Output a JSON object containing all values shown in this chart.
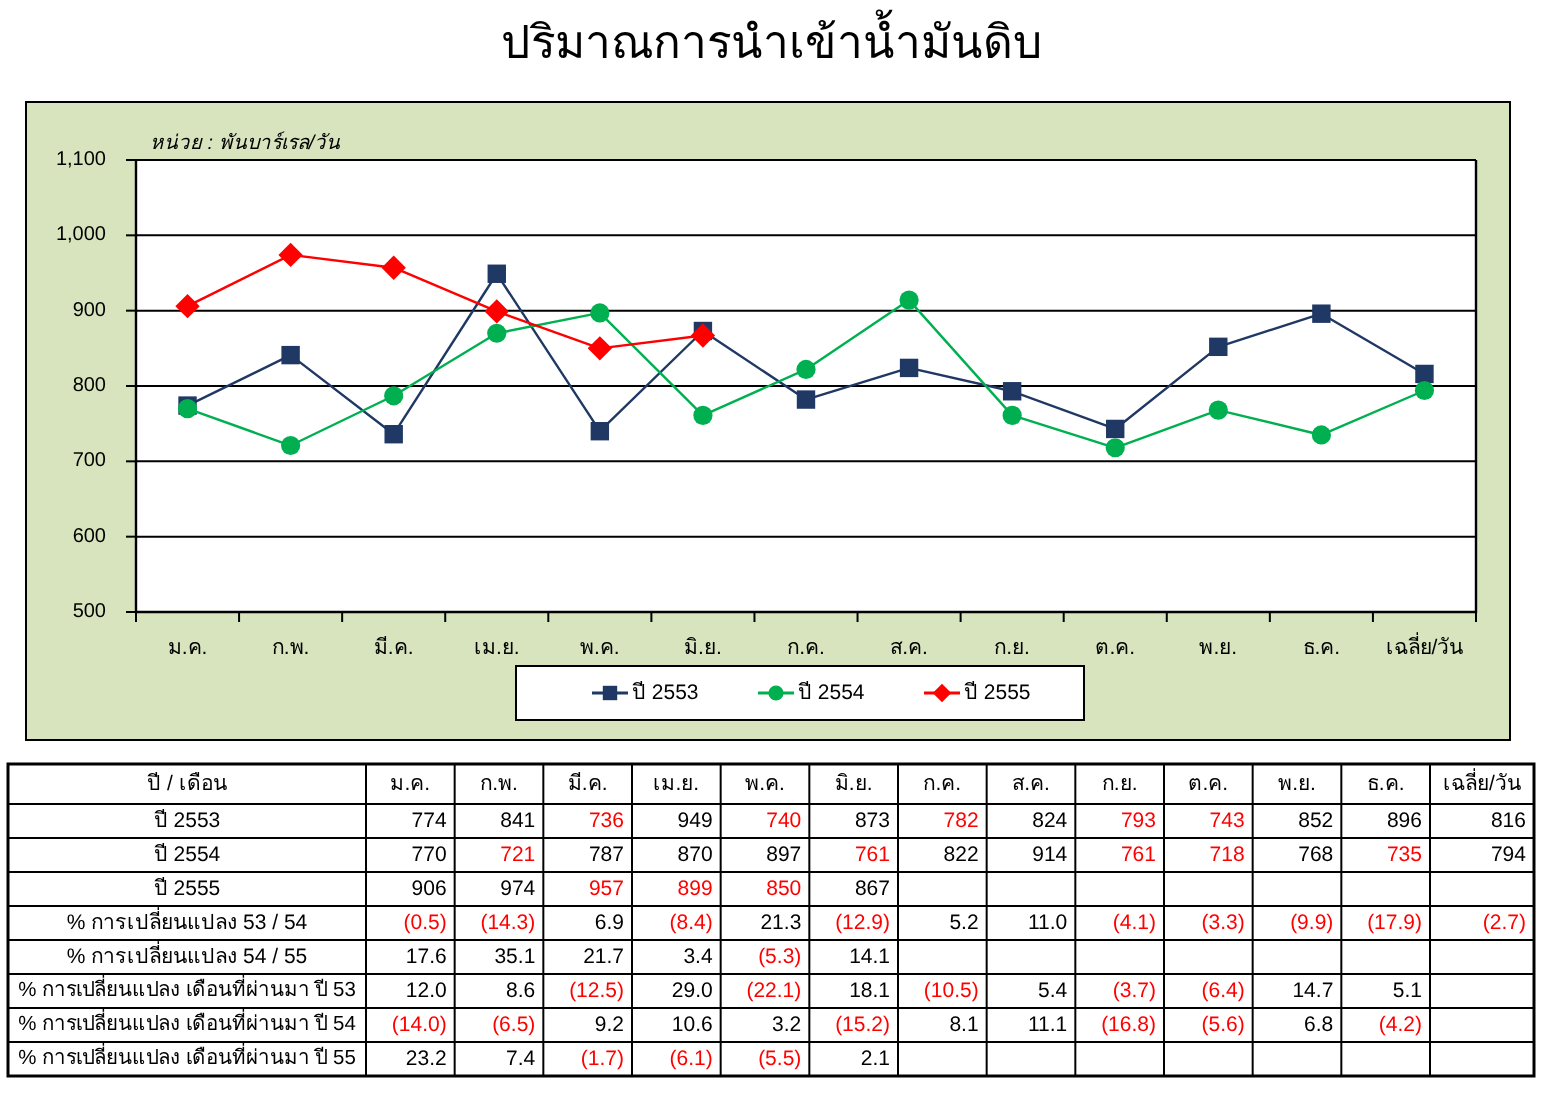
{
  "chart_data": [
    {
      "type": "line",
      "title": "ปริมาณการนำเข้าน้ำมันดิบ",
      "categories": [
        "ม.ค.",
        "ก.พ.",
        "มี.ค.",
        "เม.ย.",
        "พ.ค.",
        "มิ.ย.",
        "ก.ค.",
        "ส.ค.",
        "ก.ย.",
        "ต.ค.",
        "พ.ย.",
        "ธ.ค.",
        "เฉลี่ย/วัน"
      ],
      "series": [
        {
          "name": "ปี 2553",
          "color": "#1f3864",
          "marker": "square",
          "values": [
            774,
            841,
            736,
            949,
            740,
            873,
            782,
            824,
            793,
            743,
            852,
            896,
            816
          ]
        },
        {
          "name": "ปี 2554",
          "color": "#00b050",
          "marker": "circle",
          "values": [
            770,
            721,
            787,
            870,
            897,
            761,
            822,
            914,
            761,
            718,
            768,
            735,
            794
          ]
        },
        {
          "name": "ปี 2555",
          "color": "#ff0000",
          "marker": "diamond",
          "values": [
            906,
            974,
            957,
            899,
            850,
            867,
            null,
            null,
            null,
            null,
            null,
            null,
            null
          ]
        }
      ],
      "ylim": [
        500,
        1100
      ],
      "yticks": [
        500,
        600,
        700,
        800,
        900,
        {
          "value": 1000,
          "label": "1,000"
        },
        {
          "value": 1100,
          "label": "1,100"
        }
      ],
      "grid": "y",
      "legend": "bottom",
      "annotations": [
        "หน่วย : พันบาร์เรล/วัน"
      ]
    },
    {
      "type": "other",
      "categories": [
        "ม.ค.",
        "ก.พ.",
        "มี.ค.",
        "เม.ย.",
        "พ.ค.",
        "มิ.ย.",
        "ก.ค.",
        "ส.ค.",
        "ก.ย.",
        "ต.ค.",
        "พ.ย.",
        "ธ.ค.",
        "เฉลี่ย/วัน"
      ],
      "annotations": [
        "ปี / เดือน"
      ],
      "series": [
        {
          "name": "ปี 2553",
          "values": [
            774,
            841,
            736,
            949,
            740,
            873,
            782,
            824,
            793,
            743,
            852,
            896,
            816
          ],
          "value_labels": [
            "774",
            "841",
            "736",
            "949",
            "740",
            "873",
            "782",
            "824",
            "793",
            "743",
            "852",
            "896",
            "816"
          ],
          "colors": [
            "#000000",
            "#000000",
            "#ff0000",
            "#000000",
            "#ff0000",
            "#000000",
            "#ff0000",
            "#000000",
            "#ff0000",
            "#ff0000",
            "#000000",
            "#000000",
            "#000000"
          ]
        },
        {
          "name": "ปี 2554",
          "values": [
            770,
            721,
            787,
            870,
            897,
            761,
            822,
            914,
            761,
            718,
            768,
            735,
            794
          ],
          "value_labels": [
            "770",
            "721",
            "787",
            "870",
            "897",
            "761",
            "822",
            "914",
            "761",
            "718",
            "768",
            "735",
            "794"
          ],
          "colors": [
            "#000000",
            "#ff0000",
            "#000000",
            "#000000",
            "#000000",
            "#ff0000",
            "#000000",
            "#000000",
            "#ff0000",
            "#ff0000",
            "#000000",
            "#ff0000",
            "#000000"
          ]
        },
        {
          "name": "ปี 2555",
          "values": [
            906,
            974,
            957,
            899,
            850,
            867,
            null,
            null,
            null,
            null,
            null,
            null,
            null
          ],
          "value_labels": [
            "906",
            "974",
            "957",
            "899",
            "850",
            "867",
            null,
            null,
            null,
            null,
            null,
            null,
            null
          ],
          "colors": [
            "#000000",
            "#000000",
            "#ff0000",
            "#ff0000",
            "#ff0000",
            "#000000",
            null,
            null,
            null,
            null,
            null,
            null,
            null
          ]
        },
        {
          "name": "% การเปลี่ยนแปลง 53 / 54",
          "values": [
            -0.5,
            -14.3,
            6.9,
            -8.4,
            21.3,
            -12.9,
            5.2,
            11,
            -4.1,
            -3.3,
            -9.9,
            -17.9,
            -2.7
          ],
          "value_labels": [
            "(0.5)",
            "(14.3)",
            "6.9",
            "(8.4)",
            "21.3",
            "(12.9)",
            "5.2",
            "11.0",
            "(4.1)",
            "(3.3)",
            "(9.9)",
            "(17.9)",
            "(2.7)"
          ],
          "colors": [
            "#ff0000",
            "#ff0000",
            "#000000",
            "#ff0000",
            "#000000",
            "#ff0000",
            "#000000",
            "#000000",
            "#ff0000",
            "#ff0000",
            "#ff0000",
            "#ff0000",
            "#ff0000"
          ]
        },
        {
          "name": "% การเปลี่ยนแปลง 54 / 55",
          "values": [
            17.6,
            35.1,
            21.7,
            3.4,
            -5.3,
            14.1,
            null,
            null,
            null,
            null,
            null,
            null,
            null
          ],
          "value_labels": [
            "17.6",
            "35.1",
            "21.7",
            "3.4",
            "(5.3)",
            "14.1",
            null,
            null,
            null,
            null,
            null,
            null,
            null
          ],
          "colors": [
            "#000000",
            "#000000",
            "#000000",
            "#000000",
            "#ff0000",
            "#000000",
            null,
            null,
            null,
            null,
            null,
            null,
            null
          ]
        },
        {
          "name": "% การเปลี่ยนแปลง เดือนที่ผ่านมา ปี 53",
          "values": [
            12,
            8.6,
            -12.5,
            29,
            -22.1,
            18.1,
            -10.5,
            5.4,
            -3.7,
            -6.4,
            14.7,
            5.1,
            null
          ],
          "value_labels": [
            "12.0",
            "8.6",
            "(12.5)",
            "29.0",
            "(22.1)",
            "18.1",
            "(10.5)",
            "5.4",
            "(3.7)",
            "(6.4)",
            "14.7",
            "5.1",
            null
          ],
          "colors": [
            "#000000",
            "#000000",
            "#ff0000",
            "#000000",
            "#ff0000",
            "#000000",
            "#ff0000",
            "#000000",
            "#ff0000",
            "#ff0000",
            "#000000",
            "#000000",
            null
          ]
        },
        {
          "name": "% การเปลี่ยนแปลง เดือนที่ผ่านมา ปี 54",
          "values": [
            -14,
            -6.5,
            9.2,
            10.6,
            3.2,
            -15.2,
            8.1,
            11.1,
            -16.8,
            -5.6,
            6.8,
            -4.2,
            null
          ],
          "value_labels": [
            "(14.0)",
            "(6.5)",
            "9.2",
            "10.6",
            "3.2",
            "(15.2)",
            "8.1",
            "11.1",
            "(16.8)",
            "(5.6)",
            "6.8",
            "(4.2)",
            null
          ],
          "colors": [
            "#ff0000",
            "#ff0000",
            "#000000",
            "#000000",
            "#000000",
            "#ff0000",
            "#000000",
            "#000000",
            "#ff0000",
            "#ff0000",
            "#000000",
            "#ff0000",
            null
          ]
        },
        {
          "name": "% การเปลี่ยนแปลง เดือนที่ผ่านมา ปี 55",
          "values": [
            23.2,
            7.4,
            -1.7,
            -6.1,
            -5.5,
            2.1,
            null,
            null,
            null,
            null,
            null,
            null,
            null
          ],
          "value_labels": [
            "23.2",
            "7.4",
            "(1.7)",
            "(6.1)",
            "(5.5)",
            "2.1",
            null,
            null,
            null,
            null,
            null,
            null,
            null
          ],
          "colors": [
            "#000000",
            "#000000",
            "#ff0000",
            "#ff0000",
            "#ff0000",
            "#000000",
            null,
            null,
            null,
            null,
            null,
            null,
            null
          ]
        }
      ]
    }
  ]
}
